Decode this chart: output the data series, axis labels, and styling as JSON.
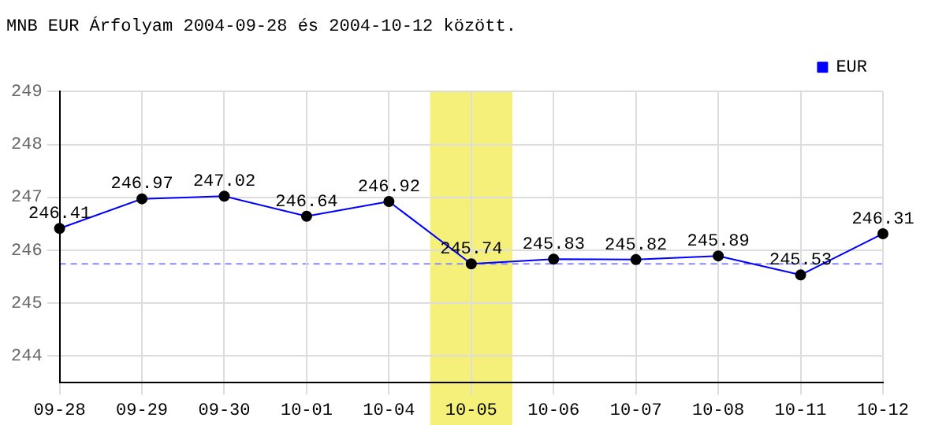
{
  "chart_data": {
    "type": "line",
    "title": "MNB EUR Árfolyam 2004-09-28 és 2004-10-12 között.",
    "categories": [
      "09-28",
      "09-29",
      "09-30",
      "10-01",
      "10-04",
      "10-05",
      "10-06",
      "10-07",
      "10-08",
      "10-11",
      "10-12"
    ],
    "series": [
      {
        "name": "EUR",
        "color": "#0000ff",
        "values": [
          246.41,
          246.97,
          247.02,
          246.64,
          246.92,
          245.74,
          245.83,
          245.82,
          245.89,
          245.53,
          246.31
        ]
      }
    ],
    "ylim": [
      243.5,
      249
    ],
    "yticks": [
      244,
      245,
      246,
      247,
      248,
      249
    ],
    "grid": true,
    "legend": "top right",
    "marker": "circle",
    "line_style": "solid",
    "data_labels": true,
    "ref_lines": [
      {
        "axis": "y",
        "value": 245.74,
        "color": "#8888ff",
        "line_style": "dashed"
      }
    ],
    "bands": [
      {
        "axis": "x",
        "from": "10-05",
        "to": "10-05",
        "color": "#f5f07a"
      }
    ]
  }
}
